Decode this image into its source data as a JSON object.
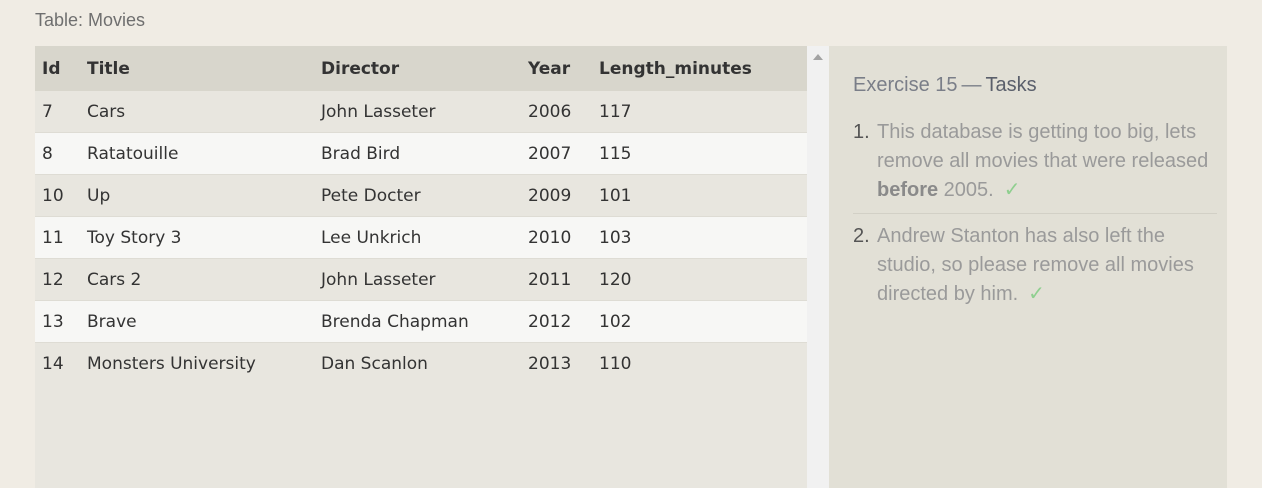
{
  "table": {
    "caption": "Table: Movies",
    "columns": [
      "Id",
      "Title",
      "Director",
      "Year",
      "Length_minutes"
    ],
    "rows": [
      [
        "7",
        "Cars",
        "John Lasseter",
        "2006",
        "117"
      ],
      [
        "8",
        "Ratatouille",
        "Brad Bird",
        "2007",
        "115"
      ],
      [
        "10",
        "Up",
        "Pete Docter",
        "2009",
        "101"
      ],
      [
        "11",
        "Toy Story 3",
        "Lee Unkrich",
        "2010",
        "103"
      ],
      [
        "12",
        "Cars 2",
        "John Lasseter",
        "2011",
        "120"
      ],
      [
        "13",
        "Brave",
        "Brenda Chapman",
        "2012",
        "102"
      ],
      [
        "14",
        "Monsters University",
        "Dan Scanlon",
        "2013",
        "110"
      ]
    ]
  },
  "tasks": {
    "exercise": "Exercise 15",
    "dash": "—",
    "title_word": "Tasks",
    "items": [
      {
        "number": "1.",
        "text_before": "This database is getting too big, lets remove all movies that were released ",
        "bold": "before",
        "text_after": " 2005.",
        "check": "✓"
      },
      {
        "number": "2.",
        "text_before": "Andrew Stanton has also left the studio, so please remove all movies directed by him.",
        "bold": "",
        "text_after": "",
        "check": "✓"
      }
    ]
  },
  "colors": {
    "page_bg": "#f0ece4",
    "header_bg": "#d8d6cc",
    "row_odd": "#e8e6df",
    "row_even": "#f7f7f5",
    "panel_bg": "#e2e0d6",
    "check": "#8fcf8f"
  },
  "icons": {
    "scroll_up": "scroll-up-arrow-icon",
    "check": "check-icon"
  }
}
